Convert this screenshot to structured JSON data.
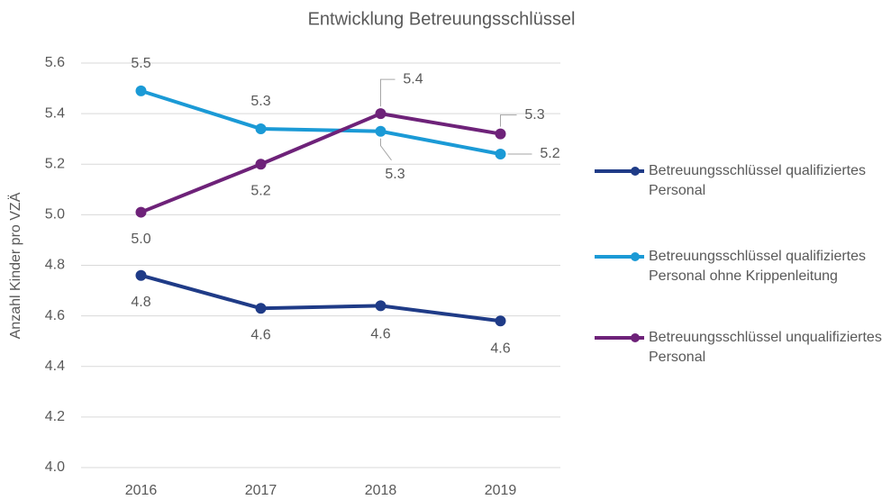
{
  "chart_data": {
    "type": "line",
    "title": "Entwicklung Betreuungsschlüssel",
    "y_label": "Anzahl Kinder pro VZÄ",
    "categories": [
      "2016",
      "2017",
      "2018",
      "2019"
    ],
    "series": [
      {
        "name": "Betreuungsschlüssel qualifiziertes Personal",
        "color": "#1f3b87",
        "values": [
          4.76,
          4.63,
          4.64,
          4.58
        ],
        "value_labels": [
          "4.8",
          "4.6",
          "4.6",
          "4.6"
        ]
      },
      {
        "name": "Betreuungsschlüssel qualifiziertes Personal ohne Krippenleitung",
        "color": "#1b9ad6",
        "values": [
          5.49,
          5.34,
          5.33,
          5.24
        ],
        "value_labels": [
          "5.5",
          "5.3",
          "5.3",
          "5.2"
        ]
      },
      {
        "name": "Betreuungsschlüssel unqualifiziertes Personal",
        "color": "#6e2279",
        "values": [
          5.01,
          5.2,
          5.4,
          5.32
        ],
        "value_labels": [
          "5.0",
          "5.2",
          "5.4",
          "5.3"
        ]
      }
    ],
    "ylim": [
      4.0,
      5.6
    ],
    "yticks": [
      {
        "value": 4,
        "label": "4.0"
      },
      4.2,
      4.4,
      4.6,
      4.8,
      {
        "value": 5,
        "label": "5.0"
      },
      5.2,
      5.4,
      5.6
    ],
    "grid": true,
    "legend": "right"
  }
}
